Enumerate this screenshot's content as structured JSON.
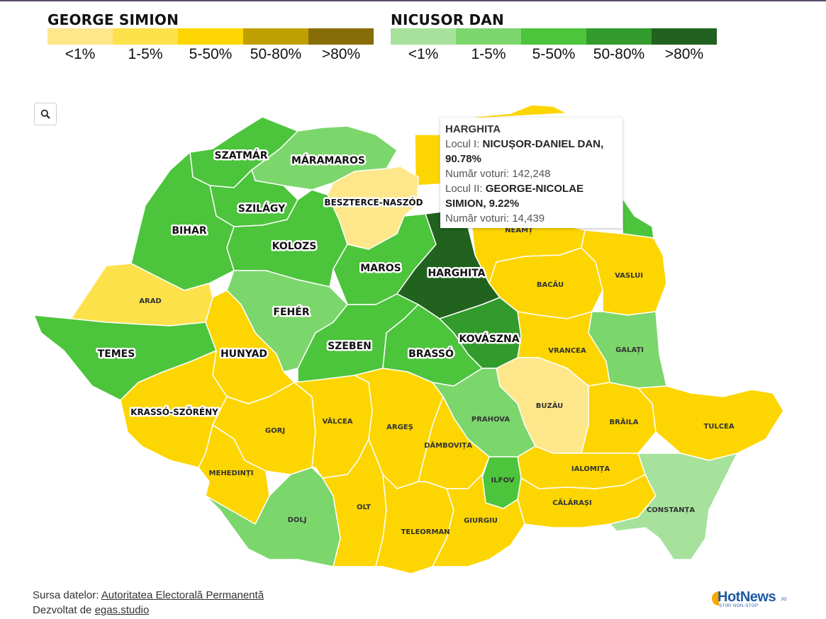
{
  "legend_left": {
    "title": "GEORGE SIMION",
    "labels": [
      "<1%",
      "1-5%",
      "5-50%",
      "50-80%",
      ">80%"
    ],
    "colors": [
      "#fde78a",
      "#fde14a",
      "#fdd500",
      "#c0a000",
      "#876d08"
    ]
  },
  "legend_right": {
    "title": "NICUSOR DAN",
    "labels": [
      "<1%",
      "1-5%",
      "5-50%",
      "50-80%",
      ">80%"
    ],
    "colors": [
      "#a6e29c",
      "#7bd66b",
      "#4cc43c",
      "#339a2c",
      "#20621e"
    ]
  },
  "counties": {
    "satu_mare": "SZATMÁR",
    "maramures": "MÁRAMAROS",
    "bistrita": "BESZTERCE-NASZÓD",
    "salaj": "SZILÁGY",
    "bihor": "BIHAR",
    "cluj": "KOLOZS",
    "mures": "MAROS",
    "harghita": "HARGHITA",
    "arad": "ARAD",
    "alba": "FEHÉR",
    "timis": "TEMES",
    "hunedoara": "HUNYAD",
    "sibiu": "SZEBEN",
    "brasov": "BRASSÓ",
    "covasna": "KOVÁSZNA",
    "caras": "KRASSÓ-SZÖRÉNY",
    "neamt": "NEAMȚ",
    "bacau": "BACĂU",
    "vaslui": "VASLUI",
    "vrancea": "VRANCEA",
    "galati": "GALAȚI",
    "buzau": "BUZĂU",
    "prahova": "PRAHOVA",
    "braila": "BRĂILA",
    "tulcea": "TULCEA",
    "gorj": "GORJ",
    "valcea": "VÂLCEA",
    "arges": "ARGEȘ",
    "dambovita": "DÂMBOVIȚA",
    "mehedinti": "MEHEDINȚI",
    "ialomita": "IALOMIȚA",
    "ilfov": "ILFOV",
    "calarasi": "CĂLĂRAȘI",
    "constanta": "CONSTANȚA",
    "dolj": "DOLJ",
    "olt": "OLT",
    "teleorman": "TELEORMAN",
    "giurgiu": "GIURGIU"
  },
  "tooltip": {
    "county": "HARGHITA",
    "first_prefix": "Locul I:",
    "first_name": "NICUȘOR-DANIEL DAN,",
    "first_pct": "90.78%",
    "first_votes": "Număr voturi: 142,248",
    "second_prefix": "Locul II:",
    "second_name_1": "GEORGE-NICOLAE",
    "second_name_2": "SIMION, 9.22%",
    "second_votes": "Număr voturi: 14,439"
  },
  "footer": {
    "source_prefix": "Sursa datelor:",
    "source_link": "Autoritatea Electorală Permanentă",
    "dev_prefix": "Dezvoltat de",
    "dev_link": "egas.studio"
  },
  "logo": {
    "word": "HotNews",
    "tld": ".ro",
    "tagline": "ȘTIRI NON-STOP"
  },
  "icons": {
    "search": "search-icon"
  }
}
